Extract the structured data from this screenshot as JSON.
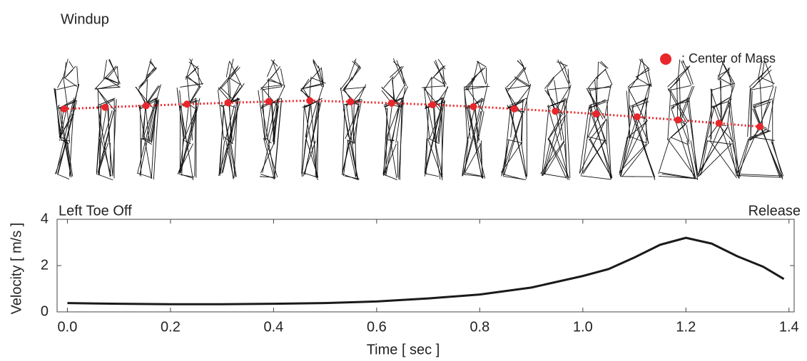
{
  "chart_data": {
    "type": "line",
    "top_label": "Windup",
    "legend": ":  Center of Mass",
    "left_label": "Left Toe Off",
    "right_label": "Release",
    "x_label": "Time [ sec ]",
    "y_label": "Velocity [ m/s ]",
    "color": "#1a1a1a",
    "com_color": "#e8262b",
    "x": [
      0.0,
      0.1,
      0.2,
      0.3,
      0.4,
      0.5,
      0.6,
      0.7,
      0.8,
      0.9,
      1.0,
      1.05,
      1.1,
      1.15,
      1.2,
      1.25,
      1.3,
      1.35,
      1.39
    ],
    "values": [
      0.38,
      0.35,
      0.33,
      0.33,
      0.35,
      0.38,
      0.45,
      0.58,
      0.75,
      1.05,
      1.55,
      1.85,
      2.35,
      2.9,
      3.2,
      2.95,
      2.4,
      1.95,
      1.42
    ],
    "xlim": [
      -0.02,
      1.41
    ],
    "ylim": [
      0,
      4
    ],
    "xticks": [
      {
        "value": 0,
        "label": "0.0"
      },
      0.2,
      0.4,
      0.6,
      0.8,
      {
        "value": 1,
        "label": "1.0"
      },
      1.2,
      1.4
    ],
    "yticks": [
      0,
      2,
      4
    ]
  }
}
